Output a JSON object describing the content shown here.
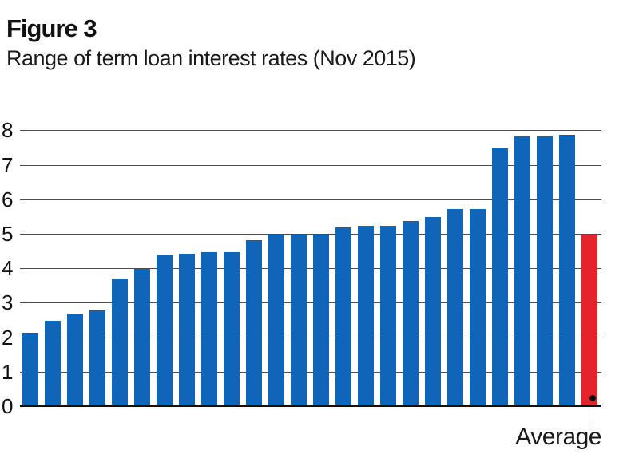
{
  "chart_data": {
    "type": "bar",
    "title": "Figure 3",
    "subtitle": "Range of term loan interest rates (Nov 2015)",
    "xlabel": "",
    "ylabel": "",
    "ylim": [
      0,
      8
    ],
    "yticks": [
      0,
      1,
      2,
      3,
      4,
      5,
      6,
      7,
      8
    ],
    "grid": true,
    "legend": "none",
    "series": [
      {
        "name": "term-loan-rates",
        "color": "#0f66b8",
        "values": [
          2.15,
          2.5,
          2.7,
          2.8,
          3.7,
          4.0,
          4.4,
          4.45,
          4.5,
          4.5,
          4.85,
          5.0,
          5.0,
          5.0,
          5.2,
          5.25,
          5.25,
          5.4,
          5.5,
          5.75,
          5.75,
          7.5,
          7.85,
          7.85,
          7.9
        ]
      },
      {
        "name": "average",
        "color": "#e5232b",
        "values": [
          5.0
        ]
      }
    ],
    "annotations": [
      {
        "label": "Average",
        "target": "last-bar",
        "marker": "dot",
        "marker_value": 0.25
      }
    ],
    "colors": {
      "gridline": "#4d4d4d",
      "axis_line": "#111111",
      "text": "#1a1a1a",
      "leader_line": "#808080",
      "marker_dot": "#111111"
    }
  }
}
